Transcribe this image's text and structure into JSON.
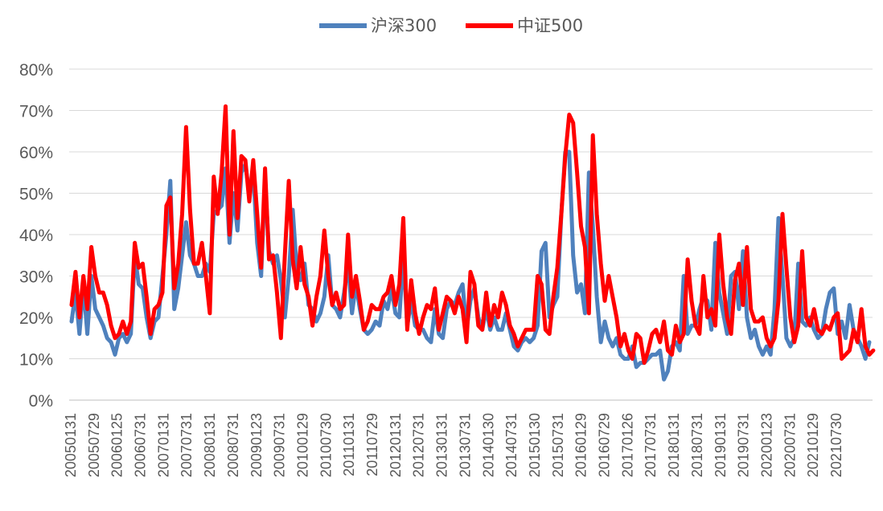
{
  "chart_data": {
    "type": "line",
    "title": "",
    "xlabel": "",
    "ylabel": "",
    "ylim": [
      0,
      0.8
    ],
    "y_ticks": [
      "0%",
      "10%",
      "20%",
      "30%",
      "40%",
      "50%",
      "60%",
      "70%",
      "80%"
    ],
    "x_tick_labels": [
      "20050131",
      "20050729",
      "20060125",
      "20060731",
      "20070131",
      "20070731",
      "20080131",
      "20080731",
      "20090123",
      "20090731",
      "20100129",
      "20100730",
      "20110131",
      "20110729",
      "20120131",
      "20120731",
      "20130131",
      "20130731",
      "20140130",
      "20140731",
      "20150130",
      "20150731",
      "20160129",
      "20160729",
      "20170126",
      "20170731",
      "20180131",
      "20180731",
      "20190131",
      "20190731",
      "20200123",
      "20200731",
      "20210129",
      "20210730"
    ],
    "grid": true,
    "legend_position": "top-center",
    "series": [
      {
        "name": "沪深300",
        "color": "#4f81bd",
        "values": [
          0.19,
          0.26,
          0.16,
          0.28,
          0.16,
          0.3,
          0.22,
          0.2,
          0.18,
          0.15,
          0.14,
          0.11,
          0.15,
          0.16,
          0.14,
          0.16,
          0.35,
          0.28,
          0.27,
          0.2,
          0.15,
          0.19,
          0.2,
          0.3,
          0.4,
          0.53,
          0.22,
          0.27,
          0.35,
          0.43,
          0.35,
          0.33,
          0.3,
          0.3,
          0.33,
          0.31,
          0.45,
          0.46,
          0.47,
          0.56,
          0.38,
          0.5,
          0.41,
          0.55,
          0.57,
          0.5,
          0.55,
          0.38,
          0.3,
          0.53,
          0.36,
          0.33,
          0.35,
          0.29,
          0.2,
          0.3,
          0.46,
          0.32,
          0.29,
          0.33,
          0.23,
          0.22,
          0.19,
          0.21,
          0.25,
          0.35,
          0.23,
          0.22,
          0.2,
          0.26,
          0.33,
          0.21,
          0.28,
          0.22,
          0.17,
          0.16,
          0.17,
          0.19,
          0.18,
          0.24,
          0.22,
          0.27,
          0.21,
          0.2,
          0.35,
          0.18,
          0.24,
          0.18,
          0.17,
          0.17,
          0.15,
          0.14,
          0.22,
          0.16,
          0.15,
          0.22,
          0.24,
          0.23,
          0.26,
          0.28,
          0.17,
          0.24,
          0.27,
          0.2,
          0.17,
          0.22,
          0.17,
          0.2,
          0.17,
          0.17,
          0.21,
          0.17,
          0.13,
          0.12,
          0.14,
          0.15,
          0.14,
          0.15,
          0.18,
          0.36,
          0.38,
          0.2,
          0.23,
          0.25,
          0.45,
          0.6,
          0.6,
          0.35,
          0.26,
          0.28,
          0.21,
          0.55,
          0.42,
          0.25,
          0.14,
          0.19,
          0.15,
          0.13,
          0.15,
          0.11,
          0.1,
          0.1,
          0.13,
          0.08,
          0.09,
          0.09,
          0.1,
          0.11,
          0.11,
          0.12,
          0.05,
          0.07,
          0.13,
          0.14,
          0.12,
          0.3,
          0.16,
          0.18,
          0.18,
          0.22,
          0.25,
          0.24,
          0.17,
          0.38,
          0.26,
          0.21,
          0.16,
          0.3,
          0.31,
          0.22,
          0.36,
          0.2,
          0.15,
          0.17,
          0.13,
          0.11,
          0.13,
          0.11,
          0.22,
          0.44,
          0.3,
          0.15,
          0.13,
          0.15,
          0.33,
          0.19,
          0.18,
          0.2,
          0.17,
          0.15,
          0.16,
          0.22,
          0.26,
          0.27,
          0.16,
          0.19,
          0.15,
          0.23,
          0.17,
          0.15,
          0.13,
          0.1,
          0.14
        ]
      },
      {
        "name": "中证500",
        "color": "#ff0000",
        "values": [
          0.23,
          0.31,
          0.2,
          0.3,
          0.22,
          0.37,
          0.3,
          0.26,
          0.26,
          0.23,
          0.18,
          0.15,
          0.16,
          0.19,
          0.16,
          0.19,
          0.38,
          0.32,
          0.33,
          0.25,
          0.16,
          0.22,
          0.23,
          0.26,
          0.47,
          0.49,
          0.27,
          0.33,
          0.45,
          0.66,
          0.46,
          0.33,
          0.33,
          0.38,
          0.3,
          0.21,
          0.54,
          0.45,
          0.55,
          0.71,
          0.4,
          0.65,
          0.44,
          0.59,
          0.58,
          0.48,
          0.58,
          0.45,
          0.32,
          0.56,
          0.34,
          0.35,
          0.26,
          0.15,
          0.35,
          0.53,
          0.34,
          0.27,
          0.37,
          0.28,
          0.25,
          0.18,
          0.25,
          0.3,
          0.41,
          0.3,
          0.23,
          0.26,
          0.22,
          0.23,
          0.4,
          0.25,
          0.3,
          0.24,
          0.17,
          0.19,
          0.23,
          0.22,
          0.22,
          0.25,
          0.26,
          0.3,
          0.23,
          0.28,
          0.44,
          0.17,
          0.29,
          0.21,
          0.16,
          0.2,
          0.23,
          0.22,
          0.27,
          0.17,
          0.21,
          0.25,
          0.24,
          0.21,
          0.25,
          0.22,
          0.14,
          0.31,
          0.28,
          0.18,
          0.17,
          0.26,
          0.18,
          0.23,
          0.2,
          0.26,
          0.23,
          0.18,
          0.16,
          0.13,
          0.15,
          0.17,
          0.17,
          0.17,
          0.3,
          0.28,
          0.17,
          0.16,
          0.25,
          0.32,
          0.45,
          0.59,
          0.69,
          0.67,
          0.55,
          0.42,
          0.37,
          0.21,
          0.64,
          0.45,
          0.33,
          0.24,
          0.3,
          0.25,
          0.2,
          0.13,
          0.16,
          0.12,
          0.1,
          0.16,
          0.15,
          0.09,
          0.12,
          0.16,
          0.17,
          0.14,
          0.19,
          0.12,
          0.11,
          0.18,
          0.14,
          0.16,
          0.34,
          0.24,
          0.18,
          0.16,
          0.3,
          0.2,
          0.22,
          0.18,
          0.4,
          0.28,
          0.2,
          0.16,
          0.29,
          0.33,
          0.23,
          0.37,
          0.22,
          0.19,
          0.19,
          0.2,
          0.15,
          0.13,
          0.15,
          0.24,
          0.45,
          0.32,
          0.2,
          0.14,
          0.18,
          0.36,
          0.2,
          0.18,
          0.22,
          0.17,
          0.16,
          0.18,
          0.17,
          0.2,
          0.21,
          0.1,
          0.11,
          0.12,
          0.17,
          0.14,
          0.22,
          0.13,
          0.11,
          0.12
        ]
      }
    ]
  }
}
